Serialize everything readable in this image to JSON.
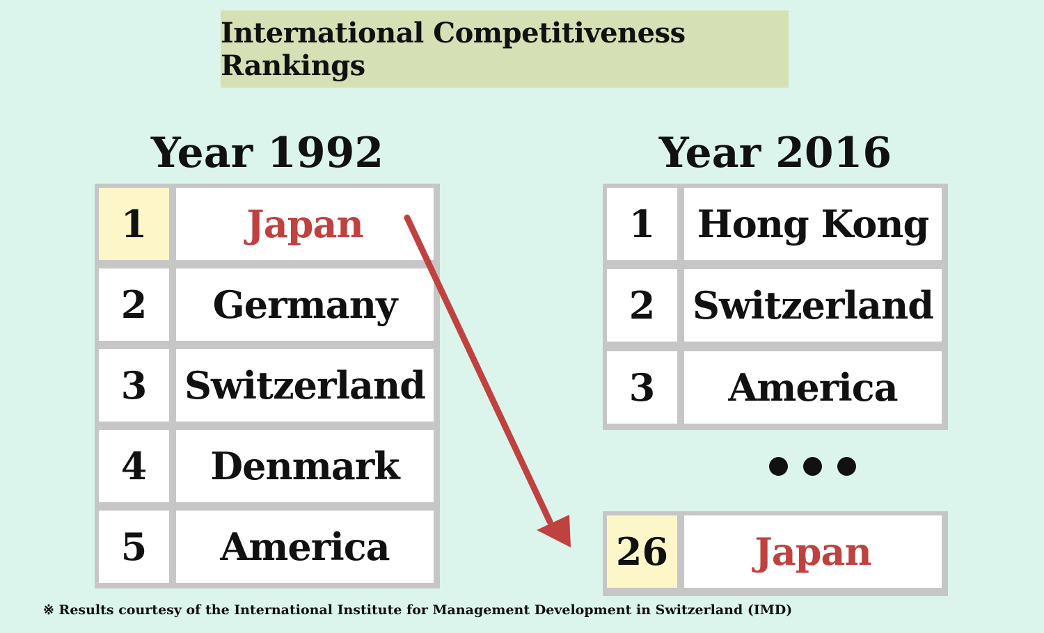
{
  "title": "International Competitiveness Rankings",
  "left_table": {
    "heading": "Year 1992",
    "rows": [
      {
        "rank": "1",
        "name": "Japan"
      },
      {
        "rank": "2",
        "name": "Germany"
      },
      {
        "rank": "3",
        "name": "Switzerland"
      },
      {
        "rank": "4",
        "name": "Denmark"
      },
      {
        "rank": "5",
        "name": "America"
      }
    ]
  },
  "right_table": {
    "heading": "Year 2016",
    "rows": [
      {
        "rank": "1",
        "name": "Hong Kong"
      },
      {
        "rank": "2",
        "name": "Switzerland"
      },
      {
        "rank": "3",
        "name": "America"
      }
    ],
    "last_row": {
      "rank": "26",
      "name": "Japan"
    }
  },
  "footnote": "※ Results courtesy of the International Institute for Management Development in Switzerland (IMD)",
  "colors": {
    "background": "#dcf5ec",
    "title_box": "#d6e0b5",
    "highlight": "#fdf6c8",
    "accent_red": "#bf4240",
    "table_border": "#c6c6c6"
  }
}
